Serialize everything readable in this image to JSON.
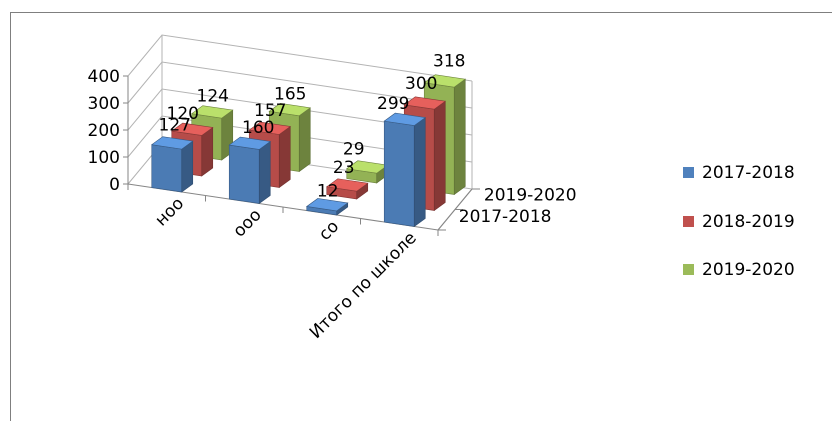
{
  "chart_data": {
    "type": "bar",
    "title": "",
    "xlabel": "",
    "ylabel": "",
    "ylim": [
      0,
      400
    ],
    "yticks": [
      0,
      100,
      200,
      300,
      400
    ],
    "categories": [
      "ноо",
      "ооо",
      "со",
      "Итого по школе"
    ],
    "depth_labels": [
      "2017-2018",
      "2019-2020"
    ],
    "series": [
      {
        "name": "2017-2018",
        "color": "#4f81bd",
        "values": [
          127,
          160,
          12,
          299
        ]
      },
      {
        "name": "2018-2019",
        "color": "#c0504d",
        "values": [
          120,
          157,
          23,
          300
        ]
      },
      {
        "name": "2019-2020",
        "color": "#9bbb59",
        "values": [
          124,
          165,
          29,
          318
        ]
      }
    ],
    "legend_position": "right",
    "grid": true
  }
}
